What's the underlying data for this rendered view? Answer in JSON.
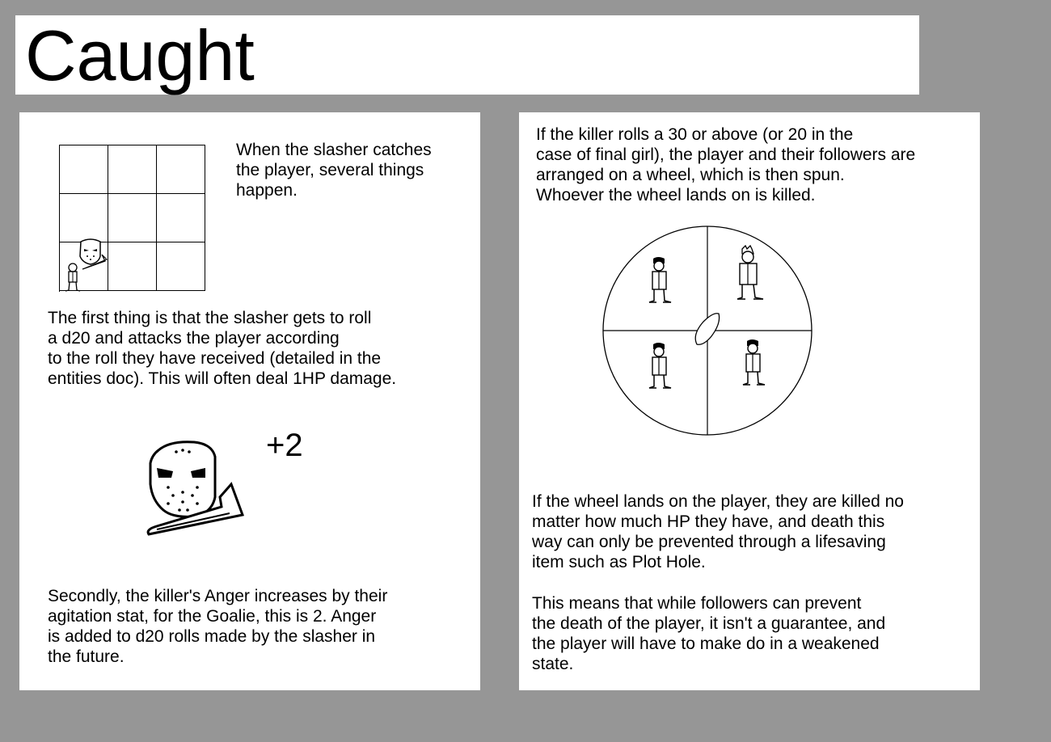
{
  "title": "Caught",
  "left": {
    "intro": "When the slasher catches\nthe player, several things\nhappen.",
    "first": "The first thing is that the slasher gets to roll\na d20 and attacks the player according\nto the roll they have received (detailed in the\nentities doc). This will often deal 1HP damage.",
    "bonus": "+2",
    "second": "Secondly, the killer's Anger increases by their\nagitation stat, for the Goalie, this is 2. Anger\nis added to d20 rolls made by the slasher in\nthe future.",
    "illustrations": [
      "movement-grid",
      "goalie-mask-icon",
      "player-sprite-icon",
      "goalie-slasher-portrait"
    ]
  },
  "right": {
    "intro": "If the killer rolls a 30 or above (or 20 in the\ncase of final girl), the player and their followers are\narranged on a wheel, which is then spun.\nWhoever the wheel lands on is killed.",
    "para1": "If the wheel lands on the player, they are killed no\nmatter how much HP they have, and death this\nway can only be prevented through a lifesaving\nitem such as Plot Hole.",
    "para2": "This means that while followers can prevent\nthe death of the player, it isn't a guarantee, and\nthe player will have to make do in a weakened\nstate.",
    "illustrations": [
      "death-wheel",
      "wheel-pointer-icon",
      "player-sprite-icon",
      "follower-sprite-icon"
    ]
  }
}
